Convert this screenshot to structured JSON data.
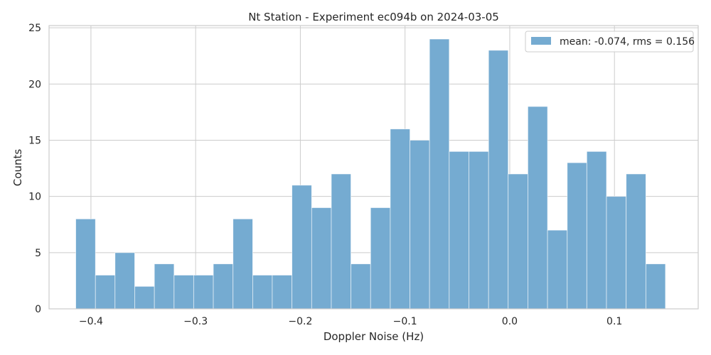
{
  "chart_data": {
    "type": "bar",
    "title": "Nt Station - Experiment ec094b on 2024-03-05",
    "xlabel": "Doppler Noise (Hz)",
    "ylabel": "Counts",
    "xlim": [
      -0.44,
      0.18
    ],
    "ylim": [
      0,
      25.2
    ],
    "xticks": [
      -0.4,
      -0.3,
      -0.2,
      -0.1,
      0.0,
      0.1
    ],
    "xtick_labels": [
      "−0.4",
      "−0.3",
      "−0.2",
      "−0.1",
      "0.0",
      "0.1"
    ],
    "yticks": [
      0,
      5,
      10,
      15,
      20,
      25
    ],
    "ytick_labels": [
      "0",
      "5",
      "10",
      "15",
      "20",
      "25"
    ],
    "bin_edges": [
      -0.4145,
      -0.3957,
      -0.377,
      -0.3582,
      -0.3394,
      -0.3206,
      -0.3019,
      -0.2831,
      -0.2643,
      -0.2455,
      -0.2268,
      -0.208,
      -0.1892,
      -0.1704,
      -0.1517,
      -0.1329,
      -0.1141,
      -0.0953,
      -0.0766,
      -0.0578,
      -0.039,
      -0.0202,
      -0.0015,
      0.0173,
      0.0361,
      0.0549,
      0.0736,
      0.0924,
      0.1112,
      0.13,
      0.1487
    ],
    "series": [
      {
        "name": "mean: -0.074, rms = 0.156",
        "color": "#75abd1",
        "values": [
          8,
          3,
          5,
          2,
          4,
          3,
          3,
          4,
          8,
          3,
          3,
          11,
          9,
          12,
          4,
          9,
          16,
          15,
          24,
          14,
          14,
          23,
          12,
          18,
          7,
          13,
          14,
          10,
          12,
          4
        ]
      }
    ],
    "grid": true,
    "legend_position": "top-right"
  }
}
